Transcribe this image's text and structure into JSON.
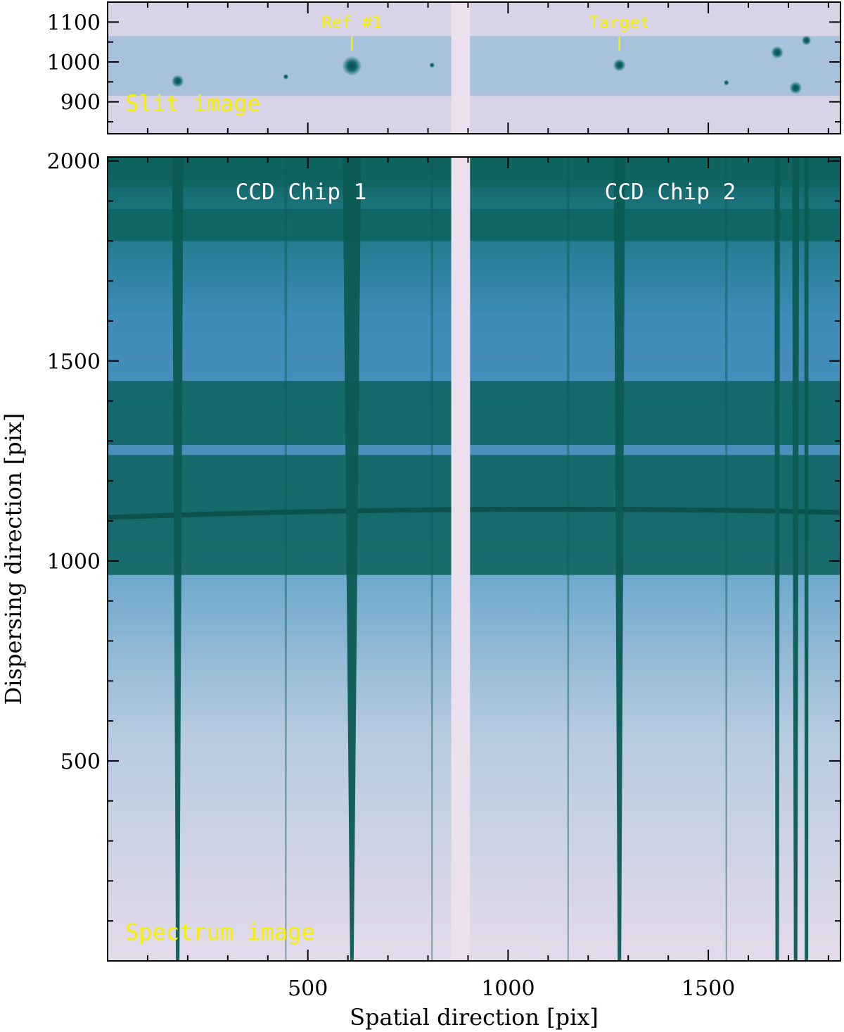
{
  "chart_data": [
    {
      "panel": "top",
      "type": "image",
      "label": "Slit image",
      "xlim": [
        0,
        1830
      ],
      "ylim": [
        820,
        1150
      ],
      "yticks": [
        900,
        1000,
        1100
      ],
      "slit_band": [
        915,
        1065
      ],
      "chip_gap": [
        858,
        905
      ],
      "stars": [
        {
          "x": 175,
          "y": 952,
          "mag": "medium"
        },
        {
          "x": 445,
          "y": 963,
          "mag": "faint"
        },
        {
          "x": 610,
          "y": 990,
          "mag": "bright"
        },
        {
          "x": 810,
          "y": 992,
          "mag": "faint"
        },
        {
          "x": 1278,
          "y": 992,
          "mag": "medium"
        },
        {
          "x": 1545,
          "y": 948,
          "mag": "faint"
        },
        {
          "x": 1672,
          "y": 1024,
          "mag": "medium"
        },
        {
          "x": 1718,
          "y": 935,
          "mag": "medium"
        },
        {
          "x": 1745,
          "y": 1054,
          "mag": "small"
        }
      ],
      "annotations": [
        {
          "text": "Ref #1",
          "x": 610
        },
        {
          "text": "Target",
          "x": 1278
        }
      ]
    },
    {
      "panel": "bottom",
      "type": "image",
      "label": "Spectrum image",
      "xlabel": "Spatial direction [pix]",
      "ylabel": "Dispersing direction [pix]",
      "xlim": [
        0,
        1830
      ],
      "ylim": [
        0,
        2010
      ],
      "xticks": [
        500,
        1000,
        1500
      ],
      "yticks": [
        500,
        1000,
        1500,
        2000
      ],
      "chip_gap": [
        858,
        905
      ],
      "chip_labels": [
        "CCD Chip 1",
        "CCD Chip 2"
      ],
      "dark_bands": [
        [
          965,
          1265
        ],
        [
          1290,
          1450
        ],
        [
          1800,
          1880
        ],
        [
          1935,
          2010
        ]
      ],
      "trace_x": [
        175,
        445,
        610,
        810,
        1150,
        1278,
        1545,
        1672,
        1718,
        1745
      ]
    }
  ],
  "colors": {
    "background_dark": "#0d5e55",
    "background_light": "#e2d8e8",
    "slit_band": "#a9c2dc",
    "outside_slit": "#d8d3e6",
    "chip_gap": "#ecdfee",
    "annotation_yellow": "#f5f000",
    "chip_label": "#ffffff"
  }
}
